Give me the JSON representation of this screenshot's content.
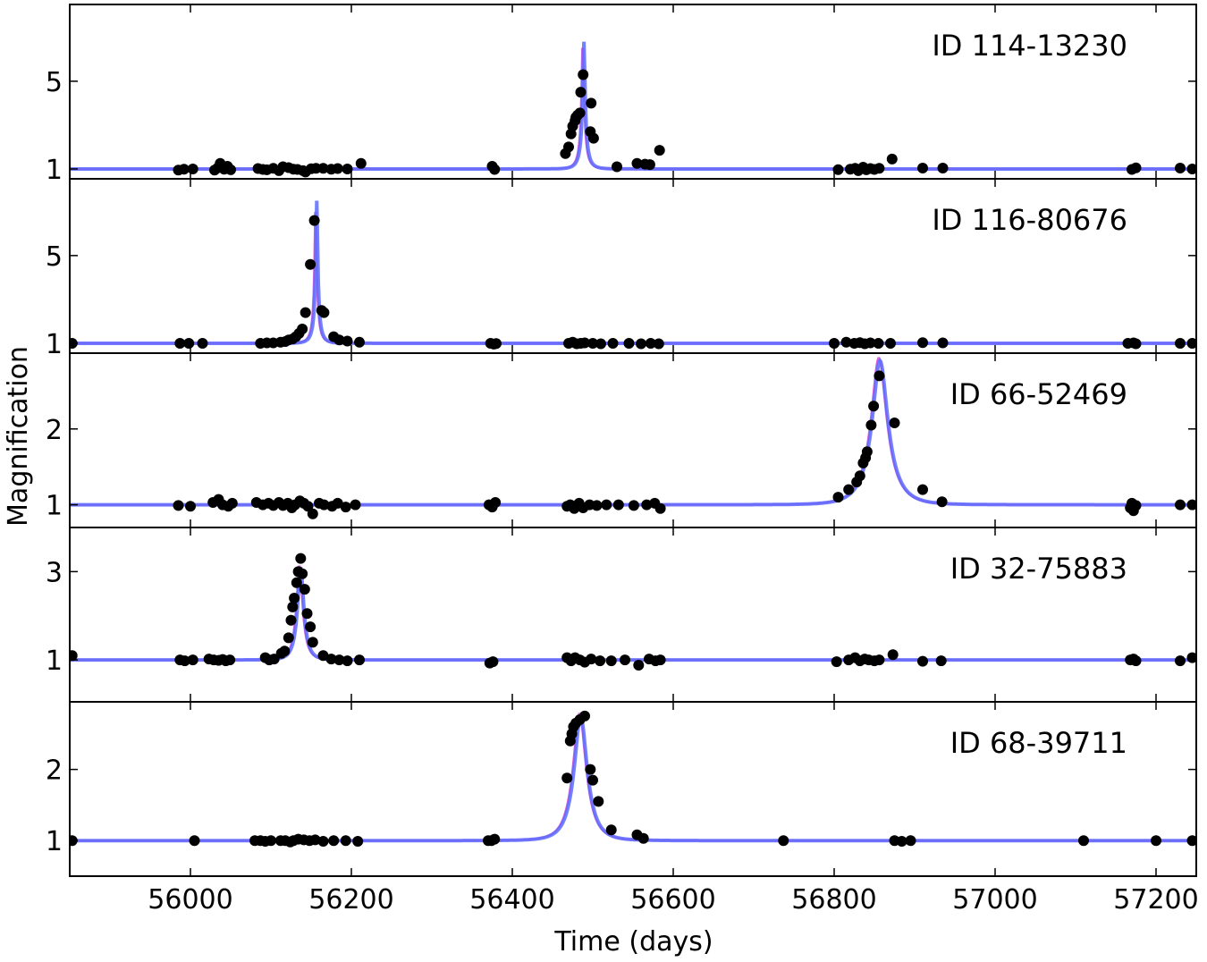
{
  "chart_data": {
    "type": "line",
    "xlabel": "Time (days)",
    "ylabel": "Magnification",
    "xlim": [
      55850,
      57250
    ],
    "x_ticks": [
      56000,
      56200,
      56400,
      56600,
      56800,
      57000,
      57200
    ],
    "x_tick_labels": [
      "56000",
      "56200",
      "56400",
      "56600",
      "56800",
      "57000",
      "57200"
    ],
    "colors": {
      "model": "#5b6cff",
      "alt_model": "#d23bd2",
      "points": "#000000",
      "frame": "#000000"
    },
    "panels": [
      {
        "id": "ID 114-13230",
        "ylim": [
          0.55,
          8.5
        ],
        "y_ticks": [
          1,
          5
        ],
        "y_tick_labels": [
          "1",
          "5"
        ],
        "model": {
          "t0": 56489,
          "u0": 0.13,
          "tE": 10,
          "vis_max": 6.8
        },
        "points": [
          [
            55985,
            0.95
          ],
          [
            55992,
            0.99
          ],
          [
            56003,
            1.0
          ],
          [
            56030,
            0.95
          ],
          [
            56034,
            1.05
          ],
          [
            56037,
            1.25
          ],
          [
            56042,
            0.99
          ],
          [
            56046,
            1.12
          ],
          [
            56050,
            0.96
          ],
          [
            56084,
            1.02
          ],
          [
            56090,
            0.98
          ],
          [
            56095,
            0.96
          ],
          [
            56103,
            1.03
          ],
          [
            56110,
            0.92
          ],
          [
            56115,
            1.1
          ],
          [
            56122,
            1.06
          ],
          [
            56128,
            0.99
          ],
          [
            56133,
            0.98
          ],
          [
            56140,
            0.92
          ],
          [
            56143,
            0.86
          ],
          [
            56150,
            1.01
          ],
          [
            56156,
            1.03
          ],
          [
            56165,
            1.03
          ],
          [
            56175,
            0.99
          ],
          [
            56183,
            1.02
          ],
          [
            56195,
            1.0
          ],
          [
            56212,
            1.25
          ],
          [
            56375,
            1.12
          ],
          [
            56378,
            0.98
          ],
          [
            56466,
            1.7
          ],
          [
            56470,
            2.0
          ],
          [
            56473,
            2.6
          ],
          [
            56475,
            2.95
          ],
          [
            56478,
            3.2
          ],
          [
            56479,
            3.35
          ],
          [
            56481,
            3.45
          ],
          [
            56484,
            3.55
          ],
          [
            56485,
            4.5
          ],
          [
            56488,
            5.3
          ],
          [
            56498,
            4.0
          ],
          [
            56497,
            2.7
          ],
          [
            56501,
            2.4
          ],
          [
            56530,
            1.1
          ],
          [
            56555,
            1.25
          ],
          [
            56565,
            1.22
          ],
          [
            56571,
            1.2
          ],
          [
            56583,
            1.85
          ],
          [
            56805,
            0.97
          ],
          [
            56820,
            0.99
          ],
          [
            56826,
            1.03
          ],
          [
            56830,
            0.92
          ],
          [
            56836,
            1.08
          ],
          [
            56840,
            0.96
          ],
          [
            56845,
            1.02
          ],
          [
            56850,
            0.98
          ],
          [
            56856,
            1.03
          ],
          [
            56872,
            1.45
          ],
          [
            56910,
            1.04
          ],
          [
            56935,
            1.04
          ],
          [
            57170,
            0.98
          ],
          [
            57175,
            1.05
          ],
          [
            57230,
            1.04
          ],
          [
            57245,
            1.0
          ]
        ]
      },
      {
        "id": "ID 116-80676",
        "ylim": [
          0.55,
          8.5
        ],
        "y_ticks": [
          1,
          5
        ],
        "y_tick_labels": [
          "1",
          "5"
        ],
        "model": {
          "t0": 56157,
          "u0": 0.12,
          "tE": 9,
          "vis_max": 7.5
        },
        "points": [
          [
            55853,
            1.0
          ],
          [
            55987,
            1.0
          ],
          [
            55998,
            1.0
          ],
          [
            56015,
            1.0
          ],
          [
            56087,
            1.0
          ],
          [
            56095,
            1.02
          ],
          [
            56103,
            1.02
          ],
          [
            56112,
            1.05
          ],
          [
            56118,
            1.08
          ],
          [
            56122,
            1.15
          ],
          [
            56127,
            1.2
          ],
          [
            56131,
            1.3
          ],
          [
            56135,
            1.45
          ],
          [
            56139,
            1.65
          ],
          [
            56143,
            2.4
          ],
          [
            56149,
            4.6
          ],
          [
            56154,
            6.6
          ],
          [
            56163,
            2.5
          ],
          [
            56166,
            2.4
          ],
          [
            56178,
            1.3
          ],
          [
            56185,
            1.15
          ],
          [
            56195,
            1.1
          ],
          [
            56210,
            1.05
          ],
          [
            56373,
            1.0
          ],
          [
            56377,
            0.96
          ],
          [
            56380,
            0.99
          ],
          [
            56470,
            1.0
          ],
          [
            56475,
            1.05
          ],
          [
            56480,
            0.98
          ],
          [
            56485,
            1.0
          ],
          [
            56490,
            1.02
          ],
          [
            56500,
            1.0
          ],
          [
            56510,
            0.98
          ],
          [
            56525,
            1.0
          ],
          [
            56545,
            1.0
          ],
          [
            56560,
            0.98
          ],
          [
            56572,
            1.0
          ],
          [
            56582,
            0.98
          ],
          [
            56800,
            1.0
          ],
          [
            56815,
            1.05
          ],
          [
            56825,
            1.0
          ],
          [
            56832,
            1.03
          ],
          [
            56838,
            0.98
          ],
          [
            56845,
            1.02
          ],
          [
            56855,
            1.0
          ],
          [
            56870,
            1.0
          ],
          [
            56910,
            1.03
          ],
          [
            56935,
            1.02
          ],
          [
            57165,
            1.0
          ],
          [
            57172,
            1.02
          ],
          [
            57175,
            0.98
          ],
          [
            57230,
            1.0
          ],
          [
            57245,
            1.0
          ]
        ]
      },
      {
        "id": "ID 66-52469",
        "ylim": [
          0.7,
          3.0
        ],
        "y_ticks": [
          1,
          2
        ],
        "y_tick_labels": [
          "1",
          "2"
        ],
        "model": {
          "t0": 56857,
          "u0": 0.37,
          "tE": 26,
          "vis_max": 2.9
        },
        "points": [
          [
            55985,
            0.99
          ],
          [
            56000,
            0.98
          ],
          [
            56028,
            1.03
          ],
          [
            56035,
            1.07
          ],
          [
            56040,
            1.0
          ],
          [
            56047,
            0.98
          ],
          [
            56052,
            1.02
          ],
          [
            56082,
            1.03
          ],
          [
            56090,
            1.0
          ],
          [
            56097,
            1.02
          ],
          [
            56103,
            0.99
          ],
          [
            56110,
            1.03
          ],
          [
            56115,
            0.99
          ],
          [
            56121,
            1.02
          ],
          [
            56126,
            0.96
          ],
          [
            56130,
            1.0
          ],
          [
            56136,
            1.05
          ],
          [
            56141,
            1.02
          ],
          [
            56146,
            0.98
          ],
          [
            56152,
            0.88
          ],
          [
            56160,
            1.02
          ],
          [
            56166,
            1.0
          ],
          [
            56176,
            0.98
          ],
          [
            56183,
            1.02
          ],
          [
            56193,
            0.97
          ],
          [
            56205,
            1.0
          ],
          [
            56371,
            1.0
          ],
          [
            56375,
            0.97
          ],
          [
            56379,
            1.03
          ],
          [
            56468,
            0.98
          ],
          [
            56472,
            1.0
          ],
          [
            56477,
            0.95
          ],
          [
            56483,
            1.02
          ],
          [
            56488,
            0.96
          ],
          [
            56496,
            1.0
          ],
          [
            56505,
            0.99
          ],
          [
            56517,
            1.0
          ],
          [
            56532,
            1.0
          ],
          [
            56551,
            0.99
          ],
          [
            56567,
            1.0
          ],
          [
            56577,
            1.02
          ],
          [
            56584,
            0.95
          ],
          [
            56805,
            1.1
          ],
          [
            56818,
            1.2
          ],
          [
            56828,
            1.3
          ],
          [
            56832,
            1.38
          ],
          [
            56836,
            1.55
          ],
          [
            56839,
            1.62
          ],
          [
            56841,
            1.7
          ],
          [
            56846,
            2.05
          ],
          [
            56849,
            2.3
          ],
          [
            56856,
            2.7
          ],
          [
            56875,
            2.08
          ],
          [
            56910,
            1.2
          ],
          [
            56934,
            1.04
          ],
          [
            57168,
            0.96
          ],
          [
            57170,
            1.02
          ],
          [
            57172,
            0.92
          ],
          [
            57175,
            0.99
          ],
          [
            57230,
            1.0
          ],
          [
            57245,
            1.0
          ]
        ]
      },
      {
        "id": "ID 32-75883",
        "ylim": [
          0.05,
          4.0
        ],
        "y_ticks": [
          1,
          3
        ],
        "y_tick_labels": [
          "1",
          "3"
        ],
        "model": {
          "t0": 56137,
          "u0": 0.33,
          "tE": 11,
          "vis_max": 3.1
        },
        "points": [
          [
            55853,
            1.1
          ],
          [
            55987,
            1.0
          ],
          [
            55993,
            0.98
          ],
          [
            56003,
            1.0
          ],
          [
            56023,
            1.02
          ],
          [
            56029,
            1.0
          ],
          [
            56035,
            0.99
          ],
          [
            56040,
            1.01
          ],
          [
            56044,
            0.98
          ],
          [
            56049,
            1.0
          ],
          [
            56093,
            1.05
          ],
          [
            56098,
            1.0
          ],
          [
            56104,
            1.02
          ],
          [
            56113,
            1.15
          ],
          [
            56117,
            1.2
          ],
          [
            56122,
            1.5
          ],
          [
            56125,
            1.9
          ],
          [
            56127,
            2.2
          ],
          [
            56129,
            2.4
          ],
          [
            56132,
            2.75
          ],
          [
            56134,
            3.0
          ],
          [
            56137,
            3.3
          ],
          [
            56139,
            2.95
          ],
          [
            56142,
            2.6
          ],
          [
            56145,
            2.05
          ],
          [
            56149,
            1.75
          ],
          [
            56152,
            1.4
          ],
          [
            56165,
            1.1
          ],
          [
            56175,
            1.02
          ],
          [
            56185,
            1.0
          ],
          [
            56195,
            0.98
          ],
          [
            56210,
            1.0
          ],
          [
            56372,
            0.93
          ],
          [
            56376,
            0.96
          ],
          [
            56468,
            1.05
          ],
          [
            56473,
            0.98
          ],
          [
            56478,
            1.05
          ],
          [
            56484,
            1.0
          ],
          [
            56490,
            0.95
          ],
          [
            56498,
            1.02
          ],
          [
            56509,
            0.98
          ],
          [
            56523,
            0.98
          ],
          [
            56540,
            1.0
          ],
          [
            56557,
            0.88
          ],
          [
            56570,
            1.02
          ],
          [
            56578,
            0.98
          ],
          [
            56584,
            1.0
          ],
          [
            56803,
            0.96
          ],
          [
            56818,
            1.0
          ],
          [
            56826,
            1.05
          ],
          [
            56832,
            0.98
          ],
          [
            56838,
            1.02
          ],
          [
            56843,
            1.0
          ],
          [
            56850,
            0.98
          ],
          [
            56856,
            1.0
          ],
          [
            56873,
            1.12
          ],
          [
            56910,
            0.97
          ],
          [
            56933,
            0.98
          ],
          [
            57168,
            1.0
          ],
          [
            57172,
            1.02
          ],
          [
            57175,
            0.98
          ],
          [
            57230,
            0.98
          ],
          [
            57245,
            1.05
          ]
        ]
      },
      {
        "id": "ID 68-39711",
        "ylim": [
          0.5,
          2.95
        ],
        "y_ticks": [
          1,
          2
        ],
        "y_tick_labels": [
          "1",
          "2"
        ],
        "model": {
          "t0": 56485,
          "u0": 0.4,
          "tE": 20,
          "vis_max": 2.75
        },
        "points": [
          [
            55853,
            1.0
          ],
          [
            56005,
            1.0
          ],
          [
            56080,
            1.0
          ],
          [
            56087,
            1.0
          ],
          [
            56093,
            0.99
          ],
          [
            56100,
            1.0
          ],
          [
            56112,
            1.0
          ],
          [
            56118,
            1.0
          ],
          [
            56124,
            0.98
          ],
          [
            56128,
            1.0
          ],
          [
            56134,
            1.02
          ],
          [
            56141,
            1.01
          ],
          [
            56148,
            1.0
          ],
          [
            56155,
            1.01
          ],
          [
            56165,
            0.99
          ],
          [
            56178,
            1.0
          ],
          [
            56193,
            1.0
          ],
          [
            56208,
            0.99
          ],
          [
            56370,
            1.0
          ],
          [
            56374,
            1.0
          ],
          [
            56378,
            1.02
          ],
          [
            56468,
            1.88
          ],
          [
            56472,
            2.4
          ],
          [
            56474,
            2.5
          ],
          [
            56476,
            2.6
          ],
          [
            56479,
            2.65
          ],
          [
            56484,
            2.7
          ],
          [
            56490,
            2.75
          ],
          [
            56497,
            2.0
          ],
          [
            56500,
            1.85
          ],
          [
            56507,
            1.55
          ],
          [
            56523,
            1.15
          ],
          [
            56555,
            1.08
          ],
          [
            56563,
            1.03
          ],
          [
            56737,
            1.0
          ],
          [
            56875,
            1.0
          ],
          [
            56884,
            0.99
          ],
          [
            56895,
            1.0
          ],
          [
            57110,
            1.0
          ],
          [
            57200,
            1.0
          ],
          [
            57245,
            1.0
          ]
        ]
      }
    ]
  }
}
